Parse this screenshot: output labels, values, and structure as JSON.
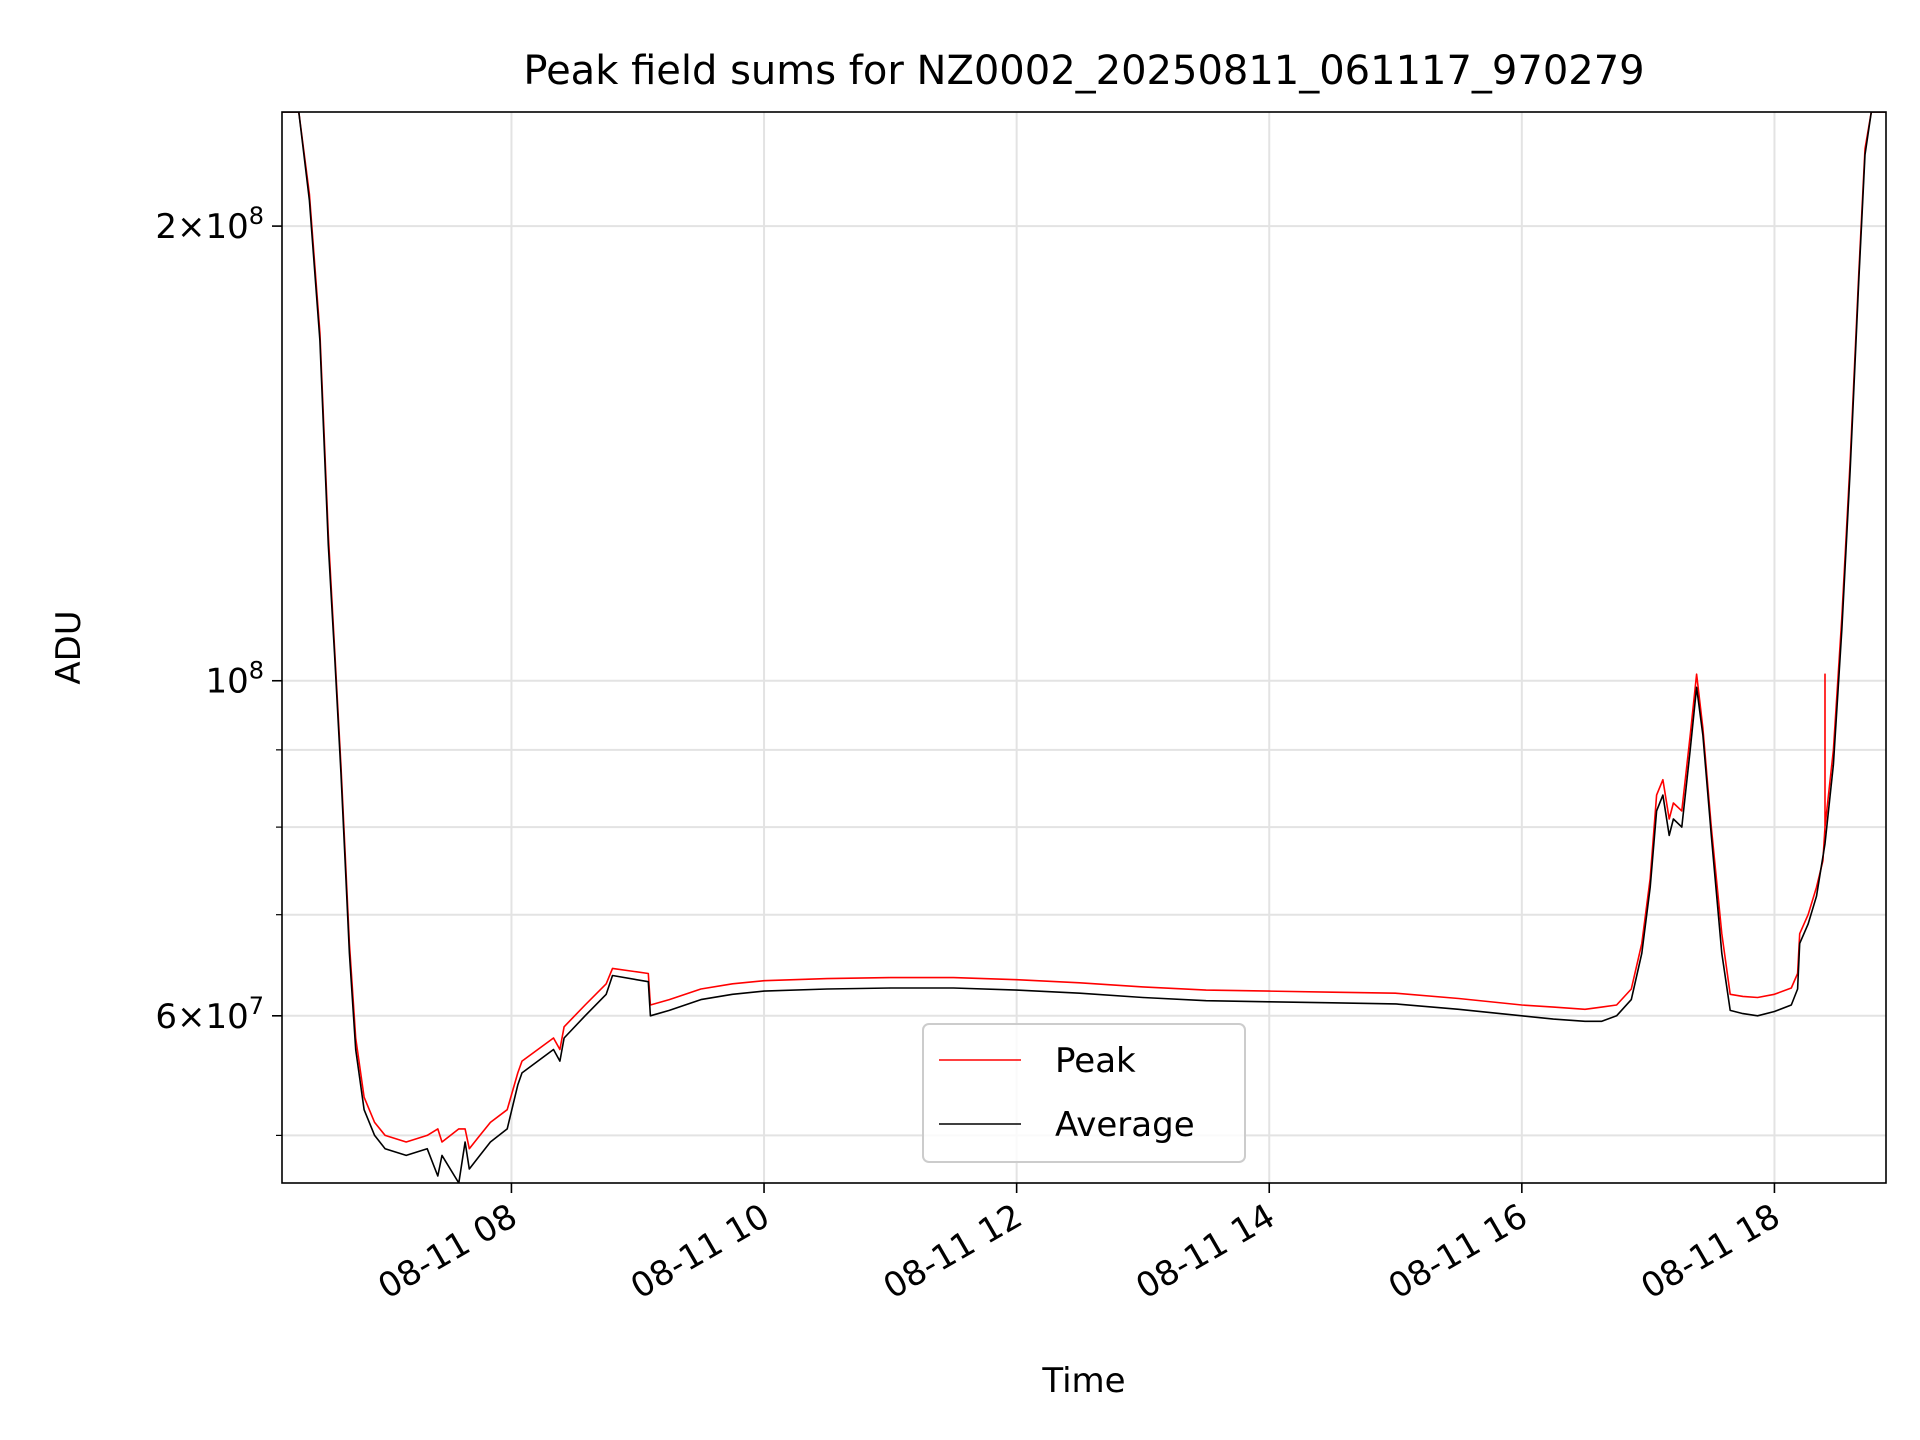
{
  "chart_data": {
    "type": "line",
    "title": "Peak field sums for NZ0002_20250811_061117_970279",
    "xlabel": "Time",
    "ylabel": "ADU",
    "yscale": "log",
    "ylim": [
      46500000,
      238000000
    ],
    "xlim": [
      "2025-08-11 06:11",
      "2025-08-11 18:53"
    ],
    "grid": true,
    "legend": {
      "position": "lower center"
    },
    "x_ticks": [
      {
        "x": "2025-08-11 08:00",
        "label": "08-11 08"
      },
      {
        "x": "2025-08-11 10:00",
        "label": "08-11 10"
      },
      {
        "x": "2025-08-11 12:00",
        "label": "08-11 12"
      },
      {
        "x": "2025-08-11 14:00",
        "label": "08-11 14"
      },
      {
        "x": "2025-08-11 16:00",
        "label": "08-11 16"
      },
      {
        "x": "2025-08-11 18:00",
        "label": "08-11 18"
      }
    ],
    "y_major_ticks": [
      {
        "value": 60000000,
        "mantissa": "6",
        "exponent": "7"
      },
      {
        "value": 100000000,
        "mantissa": "",
        "exponent": "8"
      },
      {
        "value": 200000000,
        "mantissa": "2",
        "exponent": "8"
      }
    ],
    "y_minor_ticks": [
      50000000,
      70000000,
      80000000,
      90000000
    ],
    "times_symbol": "×",
    "base_label": "10",
    "series": [
      {
        "name": "Peak",
        "color": "#ff0000",
        "x": [
          "2025-08-11 06:11",
          "2025-08-11 06:19",
          "2025-08-11 06:24",
          "2025-08-11 06:29",
          "2025-08-11 06:33",
          "2025-08-11 06:36",
          "2025-08-11 06:39",
          "2025-08-11 06:41",
          "2025-08-11 06:43",
          "2025-08-11 06:46",
          "2025-08-11 06:50",
          "2025-08-11 06:55",
          "2025-08-11 07:00",
          "2025-08-11 07:10",
          "2025-08-11 07:20",
          "2025-08-11 07:25",
          "2025-08-11 07:27",
          "2025-08-11 07:35",
          "2025-08-11 07:38",
          "2025-08-11 07:40",
          "2025-08-11 07:45",
          "2025-08-11 07:50",
          "2025-08-11 07:58",
          "2025-08-11 08:03",
          "2025-08-11 08:05",
          "2025-08-11 08:20",
          "2025-08-11 08:23",
          "2025-08-11 08:25",
          "2025-08-11 08:35",
          "2025-08-11 08:45",
          "2025-08-11 08:48",
          "2025-08-11 09:05",
          "2025-08-11 09:06",
          "2025-08-11 09:15",
          "2025-08-11 09:30",
          "2025-08-11 09:45",
          "2025-08-11 10:00",
          "2025-08-11 10:30",
          "2025-08-11 11:00",
          "2025-08-11 11:30",
          "2025-08-11 12:00",
          "2025-08-11 12:30",
          "2025-08-11 13:00",
          "2025-08-11 13:30",
          "2025-08-11 14:00",
          "2025-08-11 14:30",
          "2025-08-11 15:00",
          "2025-08-11 15:30",
          "2025-08-11 16:00",
          "2025-08-11 16:15",
          "2025-08-11 16:30",
          "2025-08-11 16:38",
          "2025-08-11 16:45",
          "2025-08-11 16:52",
          "2025-08-11 16:57",
          "2025-08-11 17:01",
          "2025-08-11 17:04",
          "2025-08-11 17:07",
          "2025-08-11 17:10",
          "2025-08-11 17:12",
          "2025-08-11 17:16",
          "2025-08-11 17:20",
          "2025-08-11 17:23",
          "2025-08-11 17:26",
          "2025-08-11 17:30",
          "2025-08-11 17:35",
          "2025-08-11 17:39",
          "2025-08-11 17:45",
          "2025-08-11 17:52",
          "2025-08-11 18:00",
          "2025-08-11 18:08",
          "2025-08-11 18:11",
          "2025-08-11 18:12",
          "2025-08-11 18:16",
          "2025-08-11 18:20",
          "2025-08-11 18:23",
          "2025-08-11 18:24",
          "2025-08-11 18:24",
          "2025-08-11 18:24",
          "2025-08-11 18:28",
          "2025-08-11 18:32",
          "2025-08-11 18:36",
          "2025-08-11 18:40",
          "2025-08-11 18:43",
          "2025-08-11 18:46",
          "2025-08-11 18:48",
          "2025-08-11 18:53"
        ],
        "y": [
          238000000,
          238000000,
          210000000,
          170000000,
          125000000,
          105000000,
          88000000,
          77000000,
          67000000,
          58000000,
          53000000,
          51000000,
          50000000,
          49500000,
          50000000,
          50500000,
          49500000,
          50500000,
          50500000,
          49000000,
          50000000,
          51000000,
          52000000,
          55000000,
          56000000,
          58000000,
          57000000,
          59000000,
          61000000,
          63000000,
          64500000,
          64000000,
          61000000,
          61500000,
          62500000,
          63000000,
          63300000,
          63500000,
          63600000,
          63600000,
          63400000,
          63100000,
          62700000,
          62400000,
          62300000,
          62200000,
          62100000,
          61600000,
          61000000,
          60800000,
          60600000,
          60800000,
          61000000,
          62500000,
          67000000,
          74000000,
          84000000,
          86000000,
          81000000,
          83000000,
          82000000,
          92000000,
          101000000,
          93000000,
          80000000,
          68000000,
          62000000,
          61800000,
          61700000,
          62000000,
          62600000,
          64000000,
          68000000,
          70000000,
          73000000,
          76000000,
          80000000,
          101000000,
          80000000,
          90000000,
          110000000,
          140000000,
          185000000,
          225000000,
          238000000,
          238000000,
          238000000
        ]
      },
      {
        "name": "Average",
        "color": "#000000",
        "x": [
          "2025-08-11 06:11",
          "2025-08-11 06:19",
          "2025-08-11 06:24",
          "2025-08-11 06:29",
          "2025-08-11 06:33",
          "2025-08-11 06:36",
          "2025-08-11 06:39",
          "2025-08-11 06:41",
          "2025-08-11 06:43",
          "2025-08-11 06:46",
          "2025-08-11 06:50",
          "2025-08-11 06:55",
          "2025-08-11 07:00",
          "2025-08-11 07:10",
          "2025-08-11 07:20",
          "2025-08-11 07:25",
          "2025-08-11 07:27",
          "2025-08-11 07:35",
          "2025-08-11 07:38",
          "2025-08-11 07:40",
          "2025-08-11 07:45",
          "2025-08-11 07:50",
          "2025-08-11 07:58",
          "2025-08-11 08:03",
          "2025-08-11 08:05",
          "2025-08-11 08:20",
          "2025-08-11 08:23",
          "2025-08-11 08:25",
          "2025-08-11 08:35",
          "2025-08-11 08:45",
          "2025-08-11 08:48",
          "2025-08-11 09:05",
          "2025-08-11 09:06",
          "2025-08-11 09:15",
          "2025-08-11 09:30",
          "2025-08-11 09:45",
          "2025-08-11 10:00",
          "2025-08-11 10:30",
          "2025-08-11 11:00",
          "2025-08-11 11:30",
          "2025-08-11 12:00",
          "2025-08-11 12:30",
          "2025-08-11 13:00",
          "2025-08-11 13:30",
          "2025-08-11 14:00",
          "2025-08-11 14:30",
          "2025-08-11 15:00",
          "2025-08-11 15:30",
          "2025-08-11 16:00",
          "2025-08-11 16:15",
          "2025-08-11 16:30",
          "2025-08-11 16:38",
          "2025-08-11 16:45",
          "2025-08-11 16:52",
          "2025-08-11 16:57",
          "2025-08-11 17:01",
          "2025-08-11 17:04",
          "2025-08-11 17:07",
          "2025-08-11 17:10",
          "2025-08-11 17:12",
          "2025-08-11 17:16",
          "2025-08-11 17:20",
          "2025-08-11 17:23",
          "2025-08-11 17:26",
          "2025-08-11 17:30",
          "2025-08-11 17:35",
          "2025-08-11 17:39",
          "2025-08-11 17:45",
          "2025-08-11 17:52",
          "2025-08-11 18:00",
          "2025-08-11 18:08",
          "2025-08-11 18:11",
          "2025-08-11 18:12",
          "2025-08-11 18:16",
          "2025-08-11 18:20",
          "2025-08-11 18:24",
          "2025-08-11 18:28",
          "2025-08-11 18:32",
          "2025-08-11 18:36",
          "2025-08-11 18:40",
          "2025-08-11 18:43",
          "2025-08-11 18:46",
          "2025-08-11 18:48",
          "2025-08-11 18:53"
        ],
        "y": [
          238000000,
          238000000,
          208000000,
          168000000,
          123000000,
          104000000,
          87000000,
          76000000,
          66000000,
          57000000,
          52000000,
          50000000,
          49000000,
          48500000,
          49000000,
          47000000,
          48500000,
          46500000,
          49500000,
          47500000,
          48500000,
          49500000,
          50500000,
          54000000,
          55000000,
          57000000,
          56000000,
          58000000,
          60000000,
          62000000,
          63800000,
          63200000,
          60000000,
          60500000,
          61500000,
          62000000,
          62300000,
          62500000,
          62600000,
          62600000,
          62400000,
          62100000,
          61700000,
          61400000,
          61300000,
          61200000,
          61100000,
          60600000,
          60000000,
          59700000,
          59500000,
          59500000,
          60000000,
          61500000,
          66000000,
          73000000,
          82000000,
          84000000,
          79000000,
          81000000,
          80000000,
          90000000,
          99000000,
          92000000,
          79000000,
          66000000,
          60500000,
          60200000,
          60000000,
          60400000,
          61000000,
          62500000,
          67000000,
          69000000,
          72000000,
          78000000,
          88000000,
          108000000,
          138000000,
          183000000,
          223000000,
          238000000,
          238000000,
          238000000
        ]
      }
    ]
  }
}
